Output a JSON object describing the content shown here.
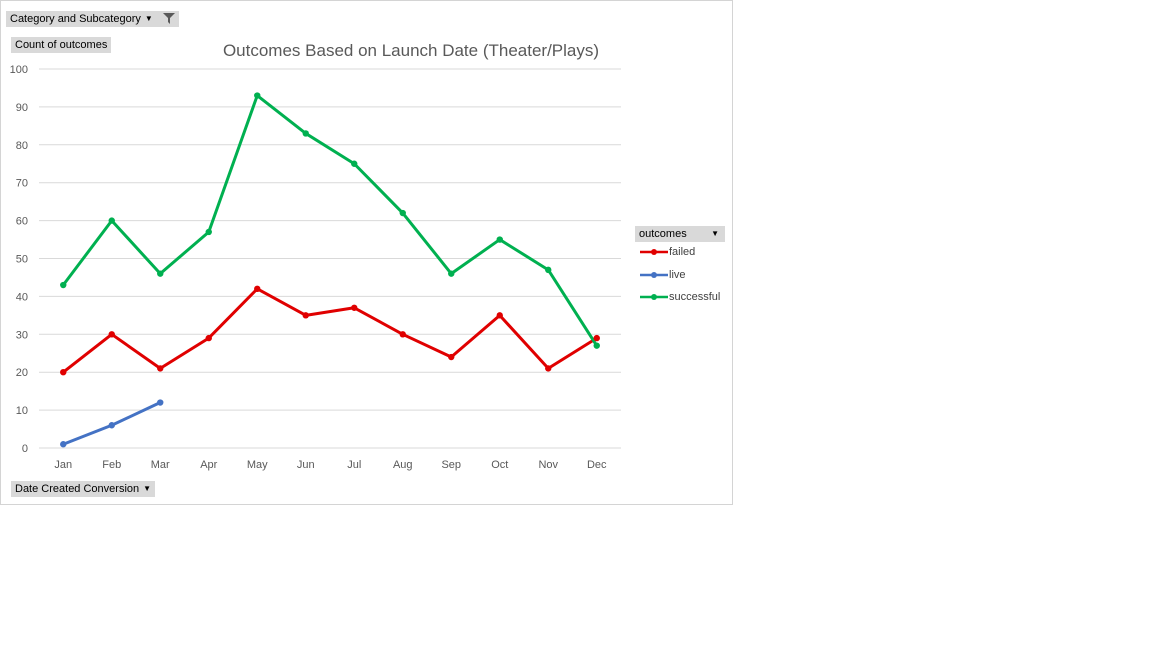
{
  "filter_button": {
    "label": "Category and Subcategory"
  },
  "y_field_button": {
    "label": "Count of outcomes"
  },
  "x_field_button": {
    "label": "Date Created Conversion"
  },
  "legend": {
    "header": "outcomes"
  },
  "colors": {
    "failed": "#e00000",
    "live": "#4472c4",
    "successful": "#00b050",
    "grid": "#d9d9d9",
    "axis_text": "#595959"
  },
  "chart_data": {
    "type": "line",
    "title": "Outcomes Based on Launch Date (Theater/Plays)",
    "xlabel": "Date Created Conversion",
    "ylabel": "Count of outcomes",
    "ylim": [
      0,
      100
    ],
    "yticks": [
      0,
      10,
      20,
      30,
      40,
      50,
      60,
      70,
      80,
      90,
      100
    ],
    "grid": true,
    "legend_position": "right",
    "categories": [
      "Jan",
      "Feb",
      "Mar",
      "Apr",
      "May",
      "Jun",
      "Jul",
      "Aug",
      "Sep",
      "Oct",
      "Nov",
      "Dec"
    ],
    "series": [
      {
        "name": "failed",
        "values": [
          20,
          30,
          21,
          29,
          42,
          35,
          37,
          30,
          24,
          35,
          21,
          29
        ]
      },
      {
        "name": "live",
        "values": [
          1,
          6,
          12,
          null,
          null,
          null,
          null,
          null,
          null,
          null,
          null,
          null
        ]
      },
      {
        "name": "successful",
        "values": [
          43,
          60,
          46,
          57,
          93,
          83,
          75,
          62,
          46,
          55,
          47,
          27
        ]
      }
    ]
  }
}
